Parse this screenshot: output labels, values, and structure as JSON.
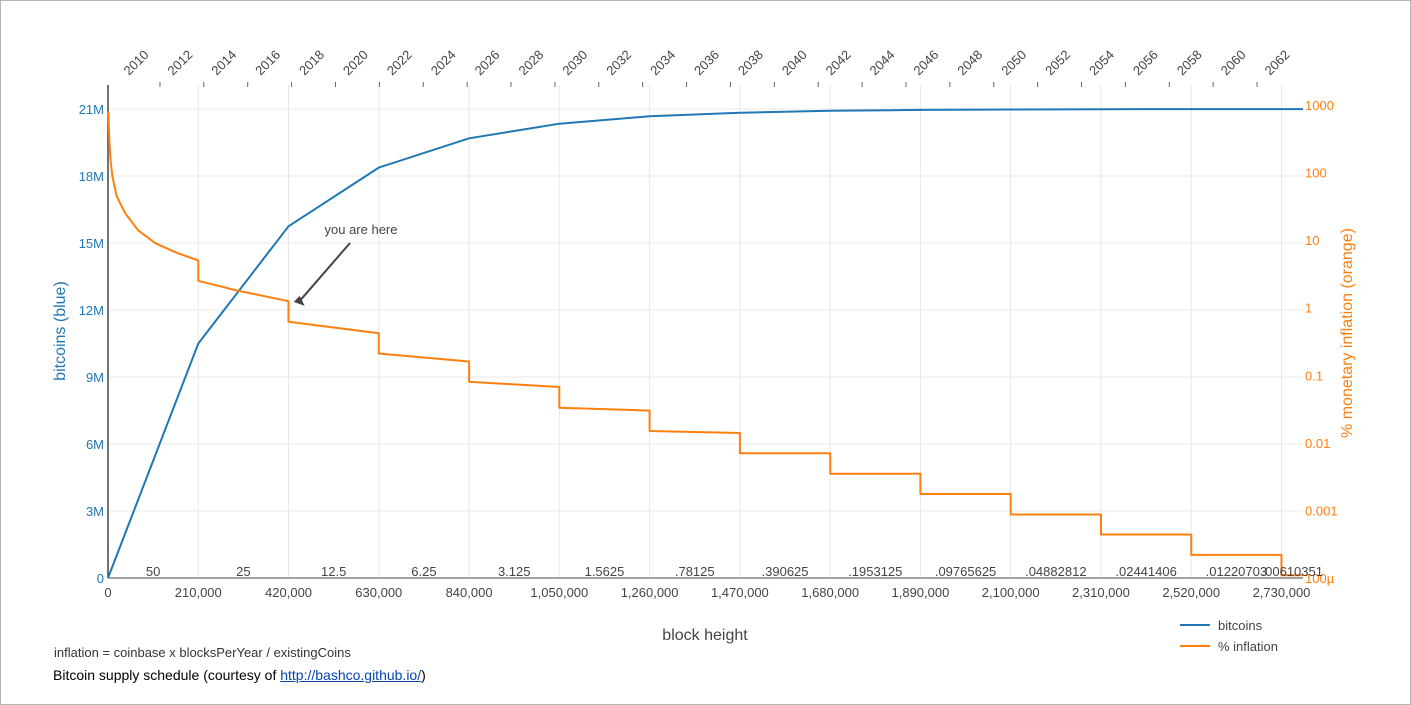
{
  "chart_data": {
    "type": "line",
    "xlabel": "block height",
    "y_left_label": "bitcoins (blue)",
    "y_right_label": "% monetary inflation (orange)",
    "x_range": [
      0,
      2780000
    ],
    "x_ticks": [
      0,
      210000,
      420000,
      630000,
      840000,
      1050000,
      1260000,
      1470000,
      1680000,
      1890000,
      2100000,
      2310000,
      2520000,
      2730000
    ],
    "x_tick_labels": [
      "0",
      "210,000",
      "420,000",
      "630,000",
      "840,000",
      "1,050,000",
      "1,260,000",
      "1,470,000",
      "1,680,000",
      "1,890,000",
      "2,100,000",
      "2,310,000",
      "2,520,000",
      "2,730,000"
    ],
    "y_left_range": [
      0,
      21000000
    ],
    "y_left_ticks": [
      0,
      3000000,
      6000000,
      9000000,
      12000000,
      15000000,
      18000000,
      21000000
    ],
    "y_left_tick_labels": [
      "0",
      "3M",
      "6M",
      "9M",
      "12M",
      "15M",
      "18M",
      "21M"
    ],
    "y_right_scale": "log",
    "y_right_range": [
      0.0001,
      1000
    ],
    "y_right_ticks": [
      0.0001,
      0.001,
      0.01,
      0.1,
      1,
      10,
      100,
      1000
    ],
    "y_right_tick_labels": [
      "100µ",
      "0.001",
      "0.01",
      "0.1",
      "1",
      "10",
      "100",
      "1000"
    ],
    "top_axis_year_labels": [
      "2010",
      "2012",
      "2014",
      "2016",
      "2018",
      "2020",
      "2022",
      "2024",
      "2026",
      "2028",
      "2030",
      "2032",
      "2034",
      "2036",
      "2038",
      "2040",
      "2042",
      "2044",
      "2046",
      "2048",
      "2050",
      "2052",
      "2054",
      "2056",
      "2058",
      "2060",
      "2062"
    ],
    "reward_labels": [
      "50",
      "25",
      "12.5",
      "6.25",
      "3.125",
      "1.5625",
      ".78125",
      ".390625",
      ".1953125",
      ".09765625",
      ".04882812",
      ".02441406",
      ".01220703",
      ".00610351"
    ],
    "series": [
      {
        "name": "bitcoins",
        "color": "#1f77b4",
        "axis": "left",
        "x": [
          0,
          210000,
          420000,
          630000,
          840000,
          1050000,
          1260000,
          1470000,
          1680000,
          1890000,
          2100000,
          2310000,
          2520000,
          2730000,
          2780000
        ],
        "values": [
          0,
          10500000,
          15750000,
          18375000,
          19687500,
          20343750,
          20671875,
          20835938,
          20917969,
          20958984,
          20979492,
          20989746,
          20994873,
          20997437,
          20997700
        ]
      },
      {
        "name": "% inflation",
        "color": "#ff7f0e",
        "axis": "right",
        "x": [
          1000,
          3000,
          6000,
          10000,
          20000,
          40000,
          70000,
          110000,
          160000,
          209999,
          210000,
          300000,
          419999,
          420000,
          629999,
          630000,
          839999,
          840000,
          1049999,
          1050000,
          1259999,
          1260000,
          1469999,
          1470000,
          1679999,
          1680000,
          1889999,
          1890000,
          2099999,
          2100000,
          2309999,
          2310000,
          2519999,
          2520000,
          2729999,
          2730000,
          2780000
        ],
        "values": [
          800,
          300,
          150,
          90,
          45,
          25,
          14,
          9,
          6.5,
          5,
          2.5,
          1.8,
          1.25,
          0.62,
          0.42,
          0.21,
          0.16,
          0.08,
          0.067,
          0.033,
          0.03,
          0.015,
          0.014,
          0.007,
          0.007,
          0.0035,
          0.0035,
          0.00175,
          0.00175,
          0.00087,
          0.00087,
          0.00044,
          0.00044,
          0.00022,
          0.00022,
          0.00011,
          0.00011
        ]
      }
    ],
    "legend_position": "bottom-right",
    "annotation": {
      "text": "you are here",
      "x": 460000,
      "y_right": 1.1
    },
    "grid": true
  },
  "footer": {
    "formula": "inflation = coinbase x blocksPerYear / existingCoins",
    "caption_prefix": "Bitcoin supply schedule (courtesy of ",
    "caption_link": "http://bashco.github.io/",
    "caption_suffix": ")"
  }
}
